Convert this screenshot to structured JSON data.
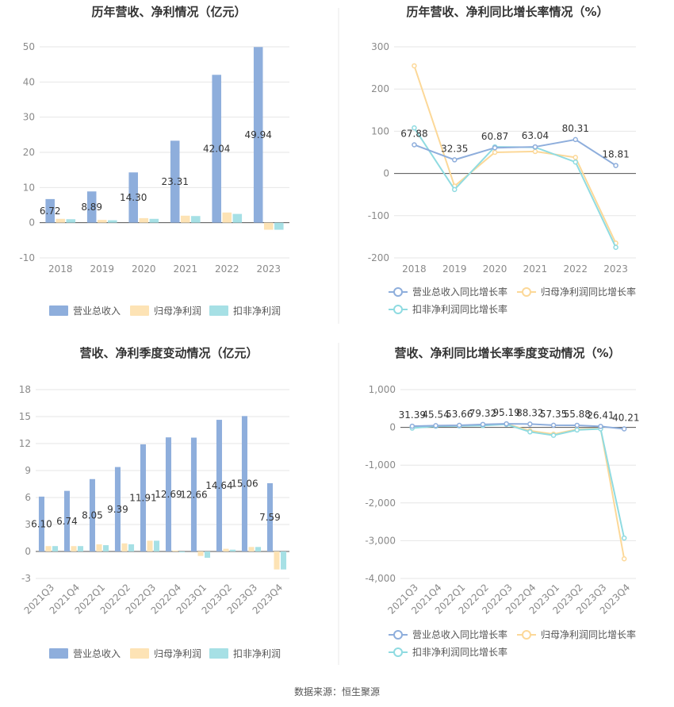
{
  "footer": {
    "source": "数据来源：恒生聚源"
  },
  "colors": {
    "revenue": "#8eaedc",
    "net_profit": "#fde3b5",
    "deducted_profit": "#a6e0e5",
    "revenue_line": "#8eaedc",
    "np_line": "#fcd898",
    "dp_line": "#8fdbe1"
  },
  "chart_data": [
    {
      "type": "bar",
      "title": "历年营收、净利情况（亿元）",
      "categories": [
        "2018",
        "2019",
        "2020",
        "2021",
        "2022",
        "2023"
      ],
      "series": [
        {
          "name": "营业总收入",
          "values": [
            6.72,
            8.89,
            14.3,
            23.31,
            42.04,
            49.94
          ],
          "labels": [
            "6.72",
            "8.89",
            "14.30",
            "23.31",
            "42.04",
            "49.94"
          ]
        },
        {
          "name": "归母净利润",
          "values": [
            1.1,
            0.8,
            1.3,
            2.0,
            2.9,
            -2.0
          ]
        },
        {
          "name": "扣非净利润",
          "values": [
            1.0,
            0.7,
            1.1,
            1.9,
            2.5,
            -2.0
          ]
        }
      ],
      "ylim": [
        -10,
        50
      ],
      "yticks": [
        "-10",
        "0",
        "10",
        "20",
        "30",
        "40",
        "50"
      ],
      "legend": "bottom"
    },
    {
      "type": "line",
      "title": "历年营收、净利同比增长率情况（%）",
      "categories": [
        "2018",
        "2019",
        "2020",
        "2021",
        "2022",
        "2023"
      ],
      "series": [
        {
          "name": "营业总收入同比增长率",
          "values": [
            67.88,
            32.35,
            60.87,
            63.04,
            80.31,
            18.81
          ],
          "labels": [
            "67.88",
            "32.35",
            "60.87",
            "63.04",
            "80.31",
            "18.81"
          ]
        },
        {
          "name": "归母净利润同比增长率",
          "values": [
            255,
            -30,
            50,
            52,
            38,
            -165
          ]
        },
        {
          "name": "扣非净利润同比增长率",
          "values": [
            108,
            -38,
            63,
            62,
            27,
            -175
          ]
        }
      ],
      "ylim": [
        -200,
        300
      ],
      "yticks": [
        "-200",
        "-100",
        "0",
        "100",
        "200",
        "300"
      ],
      "legend": "bottom"
    },
    {
      "type": "bar",
      "title": "营收、净利季度变动情况（亿元）",
      "categories": [
        "2021Q3",
        "2021Q4",
        "2022Q1",
        "2022Q2",
        "2022Q3",
        "2022Q4",
        "2023Q1",
        "2023Q2",
        "2023Q3",
        "2023Q4"
      ],
      "series": [
        {
          "name": "营业总收入",
          "values": [
            6.1,
            6.74,
            8.05,
            9.39,
            11.91,
            12.69,
            12.66,
            14.64,
            15.06,
            7.59
          ],
          "labels": [
            "6.10",
            "6.74",
            "8.05",
            "9.39",
            "11.91",
            "12.69",
            "12.66",
            "14.64",
            "15.06",
            "7.59"
          ]
        },
        {
          "name": "归母净利润",
          "values": [
            0.6,
            0.6,
            0.8,
            0.9,
            1.2,
            0.1,
            -0.5,
            0.3,
            0.5,
            -2.0
          ]
        },
        {
          "name": "扣非净利润",
          "values": [
            0.6,
            0.6,
            0.7,
            0.8,
            1.2,
            -0.1,
            -0.7,
            0.2,
            0.5,
            -2.0
          ]
        }
      ],
      "ylim": [
        -3,
        18
      ],
      "yticks": [
        "-3",
        "0",
        "3",
        "6",
        "9",
        "12",
        "15",
        "18"
      ],
      "legend": "bottom"
    },
    {
      "type": "line",
      "title": "营收、净利同比增长率季度变动情况（%）",
      "categories": [
        "2021Q3",
        "2021Q4",
        "2022Q1",
        "2022Q2",
        "2022Q3",
        "2022Q4",
        "2023Q1",
        "2023Q2",
        "2023Q3",
        "2023Q4"
      ],
      "series": [
        {
          "name": "营业总收入同比增长率",
          "values": [
            31.39,
            45.54,
            53.66,
            79.32,
            95.19,
            88.32,
            57.35,
            55.88,
            26.41,
            -40.21
          ],
          "labels": [
            "31.39",
            "45.54",
            "53.66",
            "79.32",
            "95.19",
            "88.32",
            "57.35",
            "55.88",
            "26.41",
            "-40.21"
          ]
        },
        {
          "name": "归母净利润同比增长率",
          "values": [
            0,
            40,
            50,
            60,
            90,
            -90,
            -180,
            -50,
            -30,
            -3480
          ]
        },
        {
          "name": "扣非净利润同比增长率",
          "values": [
            -20,
            30,
            40,
            50,
            80,
            -120,
            -210,
            -70,
            -40,
            -2930
          ]
        }
      ],
      "ylim": [
        -4000,
        1000
      ],
      "yticks": [
        "-4,000",
        "-3,000",
        "-2,000",
        "-1,000",
        "0",
        "1,000"
      ],
      "legend": "bottom"
    }
  ]
}
